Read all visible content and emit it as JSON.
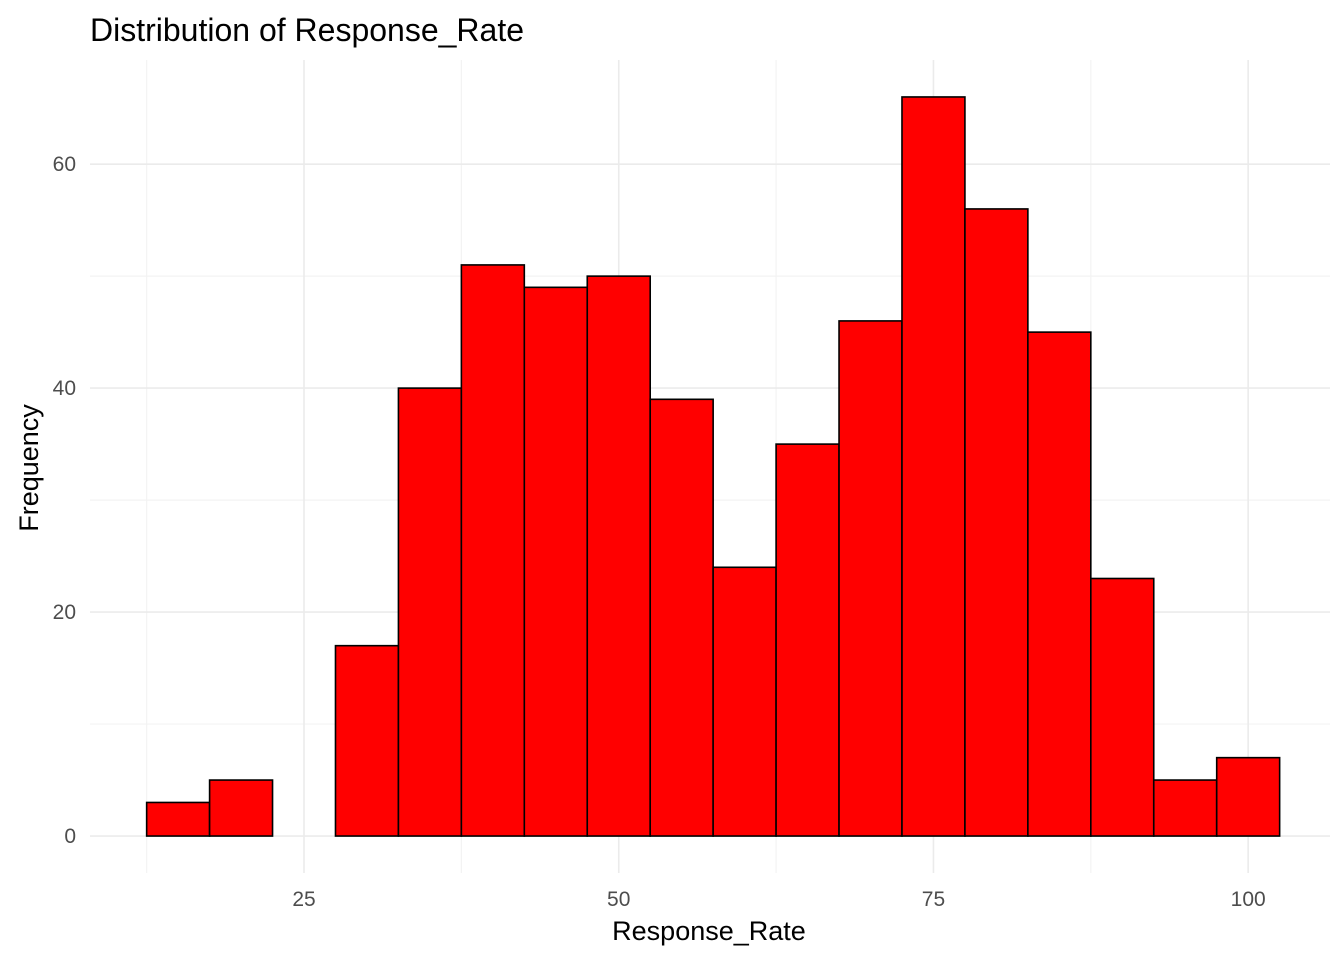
{
  "chart_data": {
    "type": "bar",
    "subtype": "histogram",
    "title": "Distribution of Response_Rate",
    "xlabel": "Response_Rate",
    "ylabel": "Frequency",
    "bin_width": 5,
    "bins": [
      {
        "x0": 12.5,
        "x1": 17.5,
        "count": 3
      },
      {
        "x0": 17.5,
        "x1": 22.5,
        "count": 5
      },
      {
        "x0": 22.5,
        "x1": 27.5,
        "count": 0
      },
      {
        "x0": 27.5,
        "x1": 32.5,
        "count": 17
      },
      {
        "x0": 32.5,
        "x1": 37.5,
        "count": 40
      },
      {
        "x0": 37.5,
        "x1": 42.5,
        "count": 51
      },
      {
        "x0": 42.5,
        "x1": 47.5,
        "count": 49
      },
      {
        "x0": 47.5,
        "x1": 52.5,
        "count": 50
      },
      {
        "x0": 52.5,
        "x1": 57.5,
        "count": 39
      },
      {
        "x0": 57.5,
        "x1": 62.5,
        "count": 24
      },
      {
        "x0": 62.5,
        "x1": 67.5,
        "count": 35
      },
      {
        "x0": 67.5,
        "x1": 72.5,
        "count": 46
      },
      {
        "x0": 72.5,
        "x1": 77.5,
        "count": 66
      },
      {
        "x0": 77.5,
        "x1": 82.5,
        "count": 56
      },
      {
        "x0": 82.5,
        "x1": 87.5,
        "count": 45
      },
      {
        "x0": 87.5,
        "x1": 92.5,
        "count": 23
      },
      {
        "x0": 92.5,
        "x1": 97.5,
        "count": 5
      },
      {
        "x0": 97.5,
        "x1": 102.5,
        "count": 7
      }
    ],
    "xlim": [
      8,
      106.5
    ],
    "ylim": [
      -3.3,
      69.3
    ],
    "x_ticks": [
      25,
      50,
      75,
      100
    ],
    "x_minor_ticks": [
      12.5,
      37.5,
      62.5,
      87.5
    ],
    "y_ticks": [
      0,
      20,
      40,
      60
    ],
    "y_minor_ticks": [
      10,
      30,
      50
    ],
    "x_tick_labels": [
      "25",
      "50",
      "75",
      "100"
    ],
    "y_tick_labels": [
      "0",
      "20",
      "40",
      "60"
    ],
    "bar_color": "#ff0000",
    "bar_edge_color": "#000000",
    "grid": true,
    "legend": "none"
  }
}
